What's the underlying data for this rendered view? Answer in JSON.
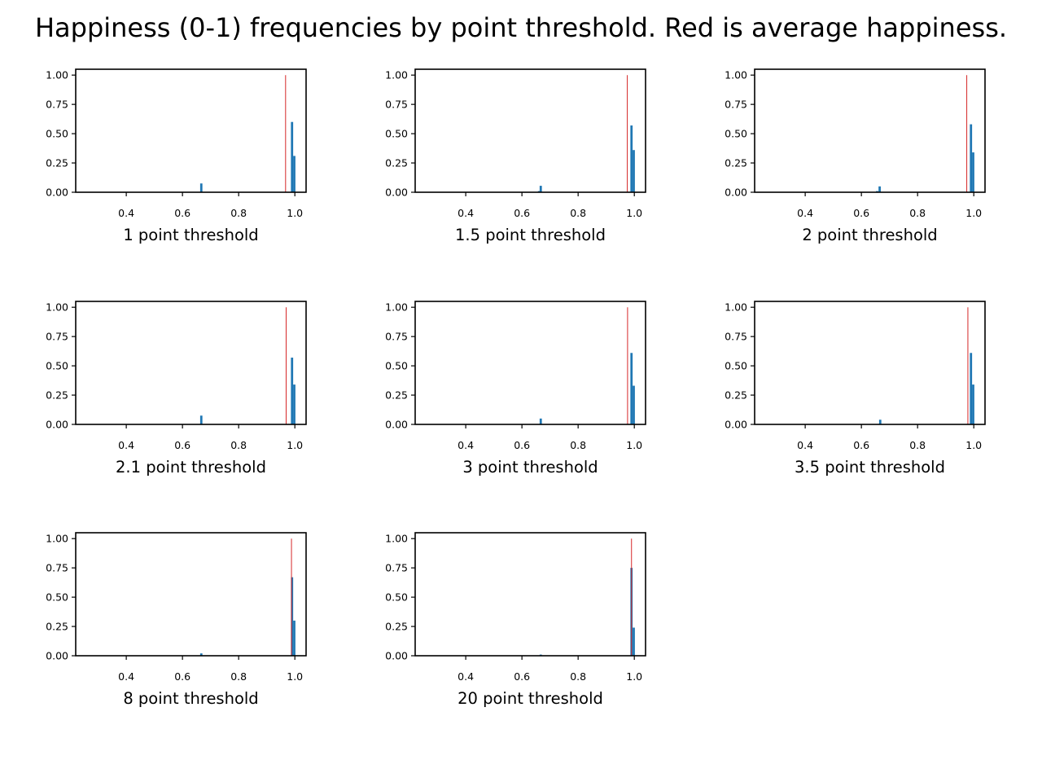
{
  "title": "Happiness (0-1) frequencies by point threshold. Red is average happiness.",
  "colors": {
    "bar": "#1f77b4",
    "mean_line": "#d62728",
    "axes": "#000000",
    "background": "#ffffff"
  },
  "chart_data": [
    {
      "type": "bar",
      "xlabel": "1 point threshold",
      "xlim": [
        0.22,
        1.04
      ],
      "ylim": [
        0,
        1.05
      ],
      "xticks": [
        "0.4",
        "0.6",
        "0.8",
        "1.0"
      ],
      "yticks": [
        "0.00",
        "0.25",
        "0.50",
        "0.75",
        "1.00"
      ],
      "bin_width": 0.008,
      "bars": [
        {
          "x": 0.667,
          "y": 0.075
        },
        {
          "x": 0.99,
          "y": 0.6
        },
        {
          "x": 0.998,
          "y": 0.31
        }
      ],
      "mean": 0.967
    },
    {
      "type": "bar",
      "xlabel": "1.5 point threshold",
      "xlim": [
        0.22,
        1.04
      ],
      "ylim": [
        0,
        1.05
      ],
      "xticks": [
        "0.4",
        "0.6",
        "0.8",
        "1.0"
      ],
      "yticks": [
        "0.00",
        "0.25",
        "0.50",
        "0.75",
        "1.00"
      ],
      "bin_width": 0.008,
      "bars": [
        {
          "x": 0.661,
          "y": 0.01
        },
        {
          "x": 0.667,
          "y": 0.055
        },
        {
          "x": 0.99,
          "y": 0.57
        },
        {
          "x": 0.998,
          "y": 0.36
        }
      ],
      "mean": 0.975
    },
    {
      "type": "bar",
      "xlabel": "2 point threshold",
      "xlim": [
        0.22,
        1.04
      ],
      "ylim": [
        0,
        1.05
      ],
      "xticks": [
        "0.4",
        "0.6",
        "0.8",
        "1.0"
      ],
      "yticks": [
        "0.00",
        "0.25",
        "0.50",
        "0.75",
        "1.00"
      ],
      "bin_width": 0.008,
      "bars": [
        {
          "x": 0.656,
          "y": 0.01
        },
        {
          "x": 0.665,
          "y": 0.05
        },
        {
          "x": 0.99,
          "y": 0.58
        },
        {
          "x": 0.998,
          "y": 0.34
        }
      ],
      "mean": 0.975
    },
    {
      "type": "bar",
      "xlabel": "2.1 point threshold",
      "xlim": [
        0.22,
        1.04
      ],
      "ylim": [
        0,
        1.05
      ],
      "xticks": [
        "0.4",
        "0.6",
        "0.8",
        "1.0"
      ],
      "yticks": [
        "0.00",
        "0.25",
        "0.50",
        "0.75",
        "1.00"
      ],
      "bin_width": 0.008,
      "bars": [
        {
          "x": 0.667,
          "y": 0.075
        },
        {
          "x": 0.99,
          "y": 0.57
        },
        {
          "x": 0.998,
          "y": 0.34
        }
      ],
      "mean": 0.969
    },
    {
      "type": "bar",
      "xlabel": "3 point threshold",
      "xlim": [
        0.22,
        1.04
      ],
      "ylim": [
        0,
        1.05
      ],
      "xticks": [
        "0.4",
        "0.6",
        "0.8",
        "1.0"
      ],
      "yticks": [
        "0.00",
        "0.25",
        "0.50",
        "0.75",
        "1.00"
      ],
      "bin_width": 0.008,
      "bars": [
        {
          "x": 0.667,
          "y": 0.05
        },
        {
          "x": 0.99,
          "y": 0.61
        },
        {
          "x": 0.998,
          "y": 0.33
        }
      ],
      "mean": 0.976
    },
    {
      "type": "bar",
      "xlabel": "3.5 point threshold",
      "xlim": [
        0.22,
        1.04
      ],
      "ylim": [
        0,
        1.05
      ],
      "xticks": [
        "0.4",
        "0.6",
        "0.8",
        "1.0"
      ],
      "yticks": [
        "0.00",
        "0.25",
        "0.50",
        "0.75",
        "1.00"
      ],
      "bin_width": 0.008,
      "bars": [
        {
          "x": 0.667,
          "y": 0.04
        },
        {
          "x": 0.99,
          "y": 0.61
        },
        {
          "x": 0.998,
          "y": 0.34
        }
      ],
      "mean": 0.979
    },
    {
      "type": "bar",
      "xlabel": "8 point threshold",
      "xlim": [
        0.22,
        1.04
      ],
      "ylim": [
        0,
        1.05
      ],
      "xticks": [
        "0.4",
        "0.6",
        "0.8",
        "1.0"
      ],
      "yticks": [
        "0.00",
        "0.25",
        "0.50",
        "0.75",
        "1.00"
      ],
      "bin_width": 0.008,
      "bars": [
        {
          "x": 0.667,
          "y": 0.02
        },
        {
          "x": 0.99,
          "y": 0.67
        },
        {
          "x": 0.998,
          "y": 0.3
        }
      ],
      "mean": 0.988
    },
    {
      "type": "bar",
      "xlabel": "20 point threshold",
      "xlim": [
        0.22,
        1.04
      ],
      "ylim": [
        0,
        1.05
      ],
      "xticks": [
        "0.4",
        "0.6",
        "0.8",
        "1.0"
      ],
      "yticks": [
        "0.00",
        "0.25",
        "0.50",
        "0.75",
        "1.00"
      ],
      "bin_width": 0.008,
      "bars": [
        {
          "x": 0.667,
          "y": 0.01
        },
        {
          "x": 0.99,
          "y": 0.75
        },
        {
          "x": 0.998,
          "y": 0.24
        }
      ],
      "mean": 0.99
    }
  ]
}
